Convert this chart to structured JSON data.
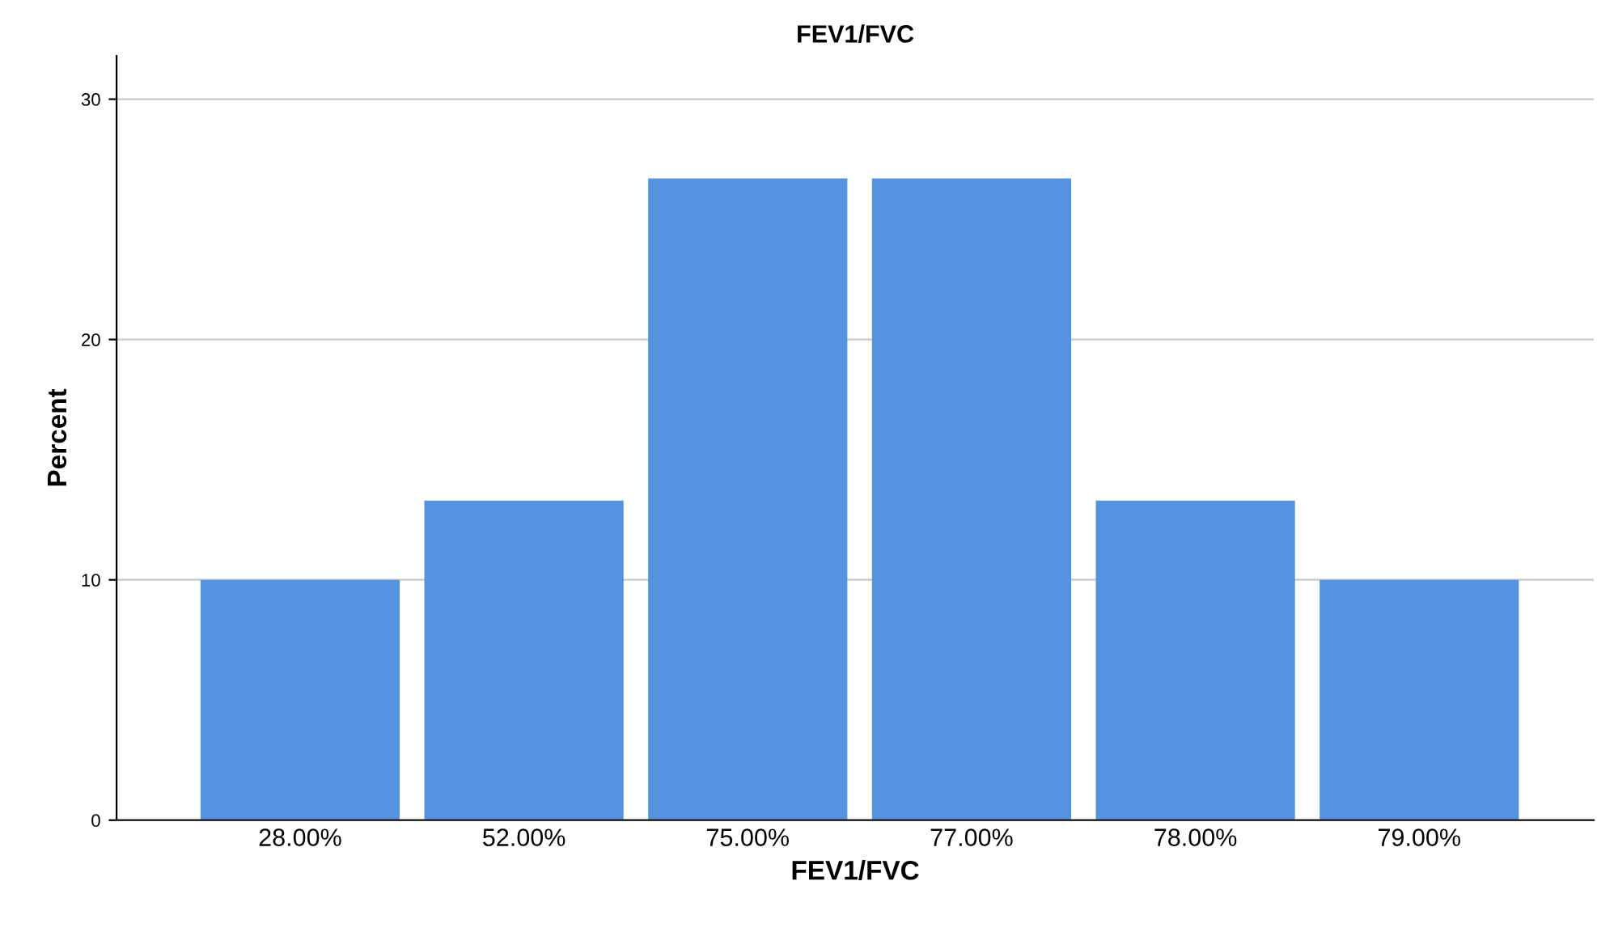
{
  "chart_data": {
    "type": "bar",
    "title": "FEV1/FVC",
    "xlabel": "FEV1/FVC",
    "ylabel": "Percent",
    "categories": [
      "28.00%",
      "52.00%",
      "75.00%",
      "77.00%",
      "78.00%",
      "79.00%"
    ],
    "values": [
      10,
      13.3,
      26.7,
      26.7,
      13.3,
      10
    ],
    "color": "#5593e0",
    "ylim": [
      0,
      31.8
    ],
    "yticks": [
      0,
      10,
      20,
      30
    ],
    "grid": "y"
  }
}
